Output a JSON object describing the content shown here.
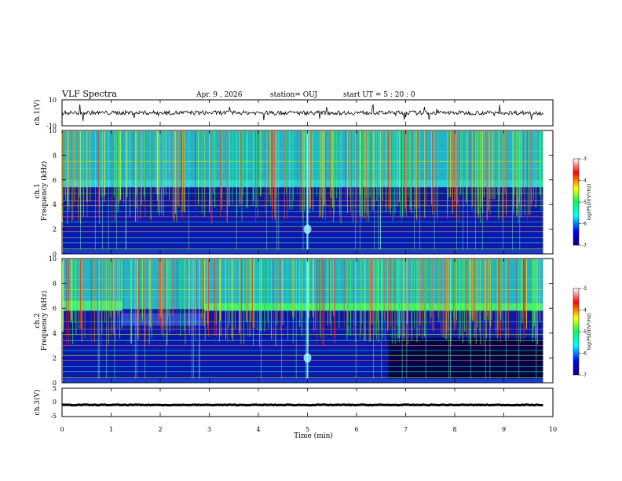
{
  "chart_data": {
    "type": "heatmap",
    "title": "VLF Spectra",
    "header": {
      "date": "Apr. 9 , 2026",
      "station": "station= OUJ",
      "start": "start UT = 5 : 20 : 0"
    },
    "xlabel": "Time (min)",
    "xlim": [
      0,
      10
    ],
    "xticks": [
      "0",
      "1",
      "2",
      "3",
      "4",
      "5",
      "6",
      "7",
      "8",
      "9",
      "10"
    ],
    "panels": [
      {
        "id": "ch1-waveform",
        "type": "line",
        "ylabel": "ch.1(V)",
        "ylim": [
          -10,
          10
        ],
        "yticks": [
          "10",
          "-10"
        ],
        "baseline": 0
      },
      {
        "id": "ch1-spectrum",
        "type": "heatmap",
        "ylabel_top": "ch.1",
        "ylabel": "Frequency (kHz)",
        "ylim": [
          0,
          10
        ],
        "yticks": [
          "10",
          "8",
          "6",
          "4",
          "2",
          "0"
        ]
      },
      {
        "id": "ch2-spectrum",
        "type": "heatmap",
        "ylabel_top": "ch.2",
        "ylabel": "Frequency (kHz)",
        "ylim": [
          0,
          10
        ],
        "yticks": [
          "10",
          "8",
          "6",
          "4",
          "2",
          "0"
        ]
      },
      {
        "id": "ch3-waveform",
        "type": "line",
        "ylabel": "ch.3(V)",
        "ylim": [
          -5,
          5
        ],
        "yticks": [
          "5",
          "0",
          "-5"
        ],
        "baseline": 0
      }
    ],
    "colorbars": [
      {
        "label": "log(PSD)(V²/Hz)",
        "range": [
          -7,
          -3
        ],
        "ticks": [
          "-3",
          "-4",
          "-5",
          "-6",
          "-7"
        ]
      },
      {
        "label": "log(PSD)(V²/Hz)",
        "range": [
          -7,
          -3
        ],
        "ticks": [
          "-3",
          "-4",
          "-5",
          "-6",
          "-7"
        ]
      }
    ],
    "data_end_min": 9.8,
    "features": {
      "ch1_band_edge_khz": 5.5,
      "ch2_band_edge_khz": 6.0,
      "ch2_band_shift_min": 2.9,
      "ch2_low_band_cut_min": 6.65,
      "burst_time_min": 5.0,
      "burst_freq_khz": 2.0
    },
    "colors": {
      "palette": [
        "#00007f",
        "#0000ff",
        "#00ffff",
        "#00ff55",
        "#ffff00",
        "#ff0000",
        "#ffffff"
      ]
    }
  }
}
